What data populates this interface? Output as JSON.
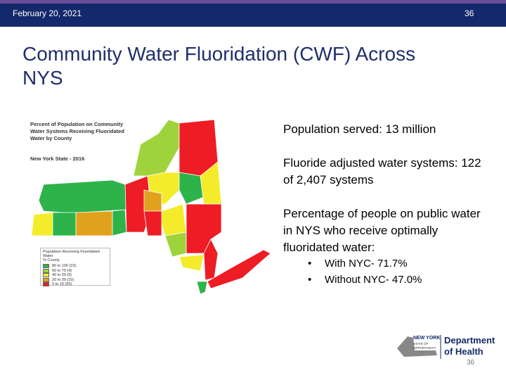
{
  "header": {
    "date": "February 20, 2021",
    "page": "36"
  },
  "title": "Community Water Fluoridation (CWF) Across NYS",
  "map": {
    "title": "Percent of Population on Community Water Systems Receiving Fluoridated Water by County",
    "subtitle": "New York State - 2016",
    "legend": {
      "title": "Population Receiving Fluoridated Water",
      "subtitle": "% County",
      "items": [
        {
          "label": "80 to 100 (23)",
          "color": "#2eb24a"
        },
        {
          "label": "60 to 79 (4)",
          "color": "#9fd33c"
        },
        {
          "label": "40 to 59 (6)",
          "color": "#f4ec2a"
        },
        {
          "label": "20 to 39 (10)",
          "color": "#e0a21c"
        },
        {
          "label": "0 to 19 (20)",
          "color": "#ee1c24"
        }
      ]
    }
  },
  "body": {
    "points": [
      "Population served: 13 million",
      "Fluoride adjusted water systems: 122 of 2,407 systems",
      "Percentage of people on public water in NYS who receive optimally fluoridated water:"
    ],
    "bullets": [
      "With NYC- 71.7%",
      "Without NYC- 47.0%"
    ]
  },
  "logo": {
    "state": "NEW YORK",
    "tagline": "STATE OF OPPORTUNITY.",
    "department": "Department of Health"
  },
  "footer": {
    "page": "36"
  }
}
